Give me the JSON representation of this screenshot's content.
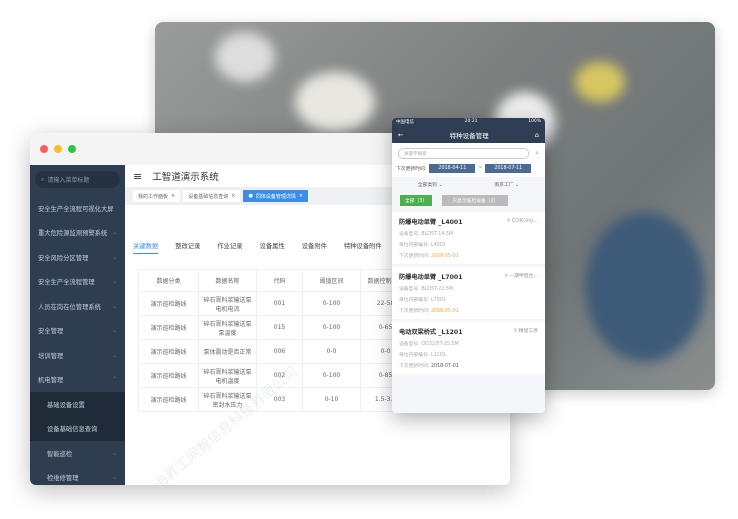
{
  "desktop": {
    "search_placeholder": "请输入菜单标题",
    "menu": [
      {
        "label": "安全生产全流程可视化大屏",
        "chevron": false
      },
      {
        "label": "重大危险源监测预警系统",
        "chevron": true
      },
      {
        "label": "安全风险分区管理",
        "chevron": true
      },
      {
        "label": "安全生产全流程管理",
        "chevron": true
      },
      {
        "label": "人员在岗在位管理系统",
        "chevron": true
      },
      {
        "label": "安全管理",
        "chevron": true
      },
      {
        "label": "培训管理",
        "chevron": true
      },
      {
        "label": "机电管理",
        "chevron": true,
        "expanded": true
      }
    ],
    "submenu": [
      "基础设备设置",
      "设备基础信息查询"
    ],
    "submenu2": [
      "智能巡检",
      "检维修管理"
    ],
    "app_title": "工智道演示系统",
    "tabs": [
      "我的工作面板",
      "设备基础信息查询",
      "同体设备管理详情"
    ],
    "subtabs": [
      "关键数据",
      "整改记录",
      "作业记录",
      "设备属性",
      "设备附件",
      "特种设备附件"
    ],
    "table": {
      "headers": [
        "数据分类",
        "数据名称",
        "代码",
        "阈值区间",
        "数据控制区间"
      ],
      "rows": [
        [
          "演示巡检路线",
          "碎石膏料浆输送泵电机电流",
          "001",
          "0-100",
          "22-58"
        ],
        [
          "演示巡检路线",
          "碎石膏料浆输送泵泵温度",
          "015",
          "0-100",
          "0-65"
        ],
        [
          "演示巡检路线",
          "泵体震动是否正常",
          "006",
          "0-0",
          "0-0"
        ],
        [
          "演示巡检路线",
          "碎石膏料浆输送泵电机温度",
          "002",
          "0-100",
          "0-85"
        ],
        [
          "演示巡检路线",
          "碎石膏料浆输送泵密封水压力",
          "003",
          "0-10",
          "1.5-3.5"
        ]
      ]
    },
    "watermark": "上海昇工网智信息科技有限公司"
  },
  "phone": {
    "carrier": "中国电信",
    "time": "20:21",
    "battery": "100%",
    "title": "特种设备管理",
    "search_placeholder": "关键字搜索",
    "date_label": "下次更新时间:",
    "date_from": "2018-04-11",
    "date_sep": "~",
    "date_to": "2018-07-11",
    "filter_type": "全部类别",
    "filter_factory": "南京工厂",
    "btn_all": "全部（3）",
    "btn_overdue": "只显示临检设备（2）",
    "cards": [
      {
        "name": "防爆电动单臂 _L4001",
        "location": "CO买冷分...",
        "model_label": "设备型号:",
        "model": "BLD5T-14.5M",
        "code_label": "单位内部编号:",
        "code": "L4001",
        "date_label": "下次更新时间:",
        "date": "2018-05-01",
        "overdue": true
      },
      {
        "name": "防爆电动单臂 _L7001",
        "location": "一期甲醛合...",
        "model_label": "设备型号:",
        "model": "BLD5T-22.5M",
        "code_label": "单位内部编号:",
        "code": "L7001",
        "date_label": "下次更新时间:",
        "date": "2018-05-01",
        "overdue": true
      },
      {
        "name": "电动双梁桥式 _L1201",
        "location": "精馏工序",
        "model_label": "设备型号:",
        "model": "QD32/5T-25.5M",
        "code_label": "单位内部编号:",
        "code": "L1201",
        "date_label": "下次更新时间:",
        "date": "2018-07-01",
        "overdue": false
      }
    ]
  },
  "colors": {
    "sidebar": "#2e3d4f",
    "accent": "#3a8ee6",
    "green": "#4caf50",
    "orange": "#f0a64a"
  }
}
